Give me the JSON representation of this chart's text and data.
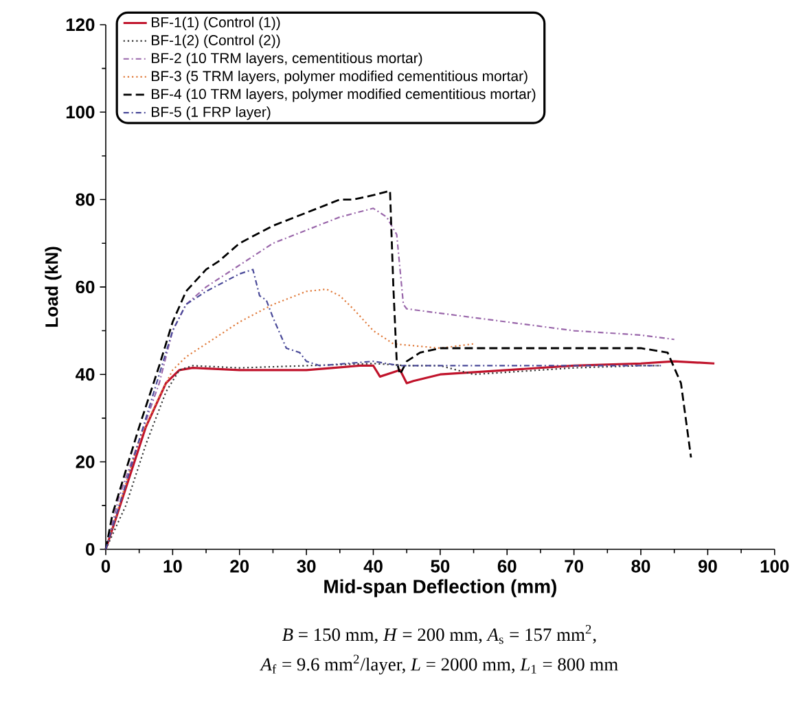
{
  "chart_data": {
    "type": "line",
    "xlabel": "Mid-span Deflection (mm)",
    "ylabel": "Load (kN)",
    "xlim": [
      0,
      100
    ],
    "ylim": [
      0,
      120
    ],
    "xticks": [
      0,
      10,
      20,
      30,
      40,
      50,
      60,
      70,
      80,
      90,
      100
    ],
    "yticks": [
      0,
      20,
      40,
      60,
      80,
      100,
      120
    ],
    "grid": false,
    "legend": "top",
    "marker": "none",
    "annotations": [
      "*B* = 150 mm, *H* = 200 mm, *A*$_{s}$ = 157 mm$^{2}$,",
      "*A*$_{f}$ = 9.6 mm$^{2}$/layer, *L* = 2000 mm, *L*$_{1}$ = 800 mm"
    ],
    "series": [
      {
        "name": "BF-1(1) (Control (1))",
        "color": "#c0132b",
        "line_style": "solid",
        "x": [
          0,
          3,
          6,
          9,
          11,
          13,
          20,
          30,
          38,
          40,
          41,
          43,
          44,
          45,
          46,
          50,
          60,
          70,
          80,
          85,
          91
        ],
        "values": [
          0,
          14,
          28,
          38,
          41,
          41.5,
          41,
          41,
          42,
          42,
          39.5,
          40.5,
          41,
          38,
          38.5,
          40,
          41,
          42,
          42.5,
          43,
          42.5
        ]
      },
      {
        "name": "BF-1(2) (Control (2))",
        "color": "#333333",
        "line_style": "dotted",
        "x": [
          0,
          3,
          6,
          9,
          11,
          13,
          20,
          30,
          40,
          45,
          50,
          55,
          60,
          70,
          80,
          83
        ],
        "values": [
          0,
          10,
          24,
          36,
          41,
          42,
          41.5,
          42,
          42.5,
          42,
          42,
          40,
          40.5,
          41.5,
          42,
          42
        ]
      },
      {
        "name": "BF-2 (10 TRM layers, cementitious mortar)",
        "color": "#9966aa",
        "line_style": "dashdot",
        "x": [
          0,
          2,
          5,
          8,
          10,
          12,
          15,
          20,
          25,
          30,
          35,
          40,
          42,
          43.5,
          44.5,
          45,
          50,
          60,
          70,
          80,
          85
        ],
        "values": [
          0,
          12,
          25,
          38,
          50,
          56,
          60,
          65,
          70,
          73,
          76,
          78,
          76,
          72,
          56,
          55,
          54,
          52,
          50,
          49,
          48
        ]
      },
      {
        "name": "BF-3 (5 TRM layers, polymer modified cementitious mortar)",
        "color": "#e07a3a",
        "line_style": "dotted",
        "x": [
          0,
          5,
          8,
          10,
          12,
          15,
          20,
          25,
          30,
          33,
          35,
          37,
          40,
          43,
          50,
          55
        ],
        "values": [
          0,
          25,
          35,
          41,
          44,
          47,
          52,
          56,
          59,
          59.5,
          58,
          55,
          50,
          47,
          46,
          47
        ]
      },
      {
        "name": "BF-4 (10 TRM layers, polymer modified cementitious mortar)",
        "color": "#000000",
        "line_style": "dashed",
        "x": [
          0,
          1,
          3,
          5,
          8,
          10,
          12,
          15,
          17,
          20,
          25,
          30,
          35,
          37,
          40,
          42.5,
          43,
          43.5,
          44,
          45,
          47,
          50,
          60,
          70,
          80,
          84,
          86,
          87.5
        ],
        "values": [
          0,
          8,
          18,
          28,
          42,
          52,
          59,
          64,
          66,
          70,
          74,
          77,
          80,
          80,
          81,
          82,
          60,
          43,
          40,
          43,
          45,
          46,
          46,
          46,
          46,
          45,
          38,
          21
        ]
      },
      {
        "name": "BF-5 (1 FRP layer)",
        "color": "#4a4a99",
        "line_style": "dashdot",
        "x": [
          0,
          5,
          10,
          12,
          15,
          20,
          22,
          23,
          24,
          25,
          27,
          29,
          30,
          32,
          40,
          44,
          50,
          60,
          70,
          80,
          83
        ],
        "values": [
          0,
          25,
          50,
          56,
          59,
          63,
          64,
          58,
          57,
          53,
          46,
          45,
          43,
          42,
          43,
          42,
          42,
          42,
          42,
          42,
          42
        ]
      }
    ]
  }
}
